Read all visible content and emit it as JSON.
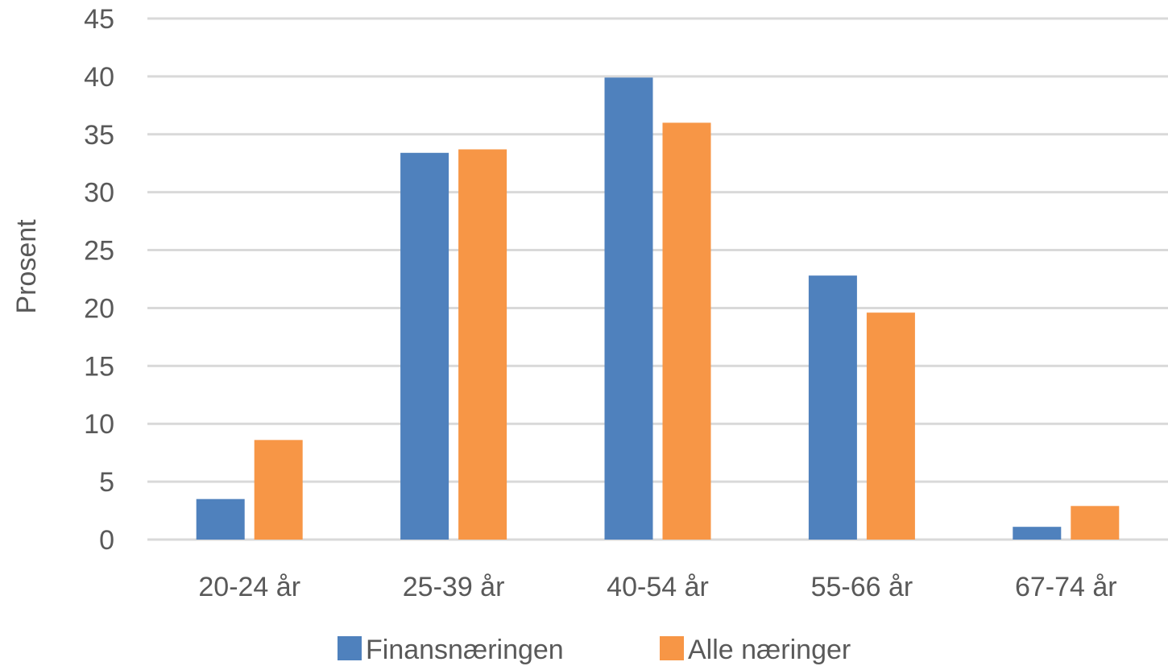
{
  "chart_data": {
    "type": "bar",
    "title": "",
    "xlabel": "",
    "ylabel": "Prosent",
    "ylim": [
      0,
      45
    ],
    "yticks": [
      "0",
      "5",
      "10",
      "15",
      "20",
      "25",
      "30",
      "35",
      "40",
      "45"
    ],
    "ytick_values": [
      0,
      5,
      10,
      15,
      20,
      25,
      30,
      35,
      40,
      45
    ],
    "grid": true,
    "legend_position": "bottom",
    "categories": [
      "20-24 år",
      "25-39 år",
      "40-54 år",
      "55-66 år",
      "67-74 år"
    ],
    "series": [
      {
        "name": "Finansnæringen",
        "color": "#4f81bd",
        "values": [
          3.5,
          33.4,
          39.9,
          22.8,
          1.1
        ]
      },
      {
        "name": "Alle næringer",
        "color": "#f79646",
        "values": [
          8.6,
          33.7,
          36.0,
          19.6,
          2.9
        ]
      }
    ]
  }
}
